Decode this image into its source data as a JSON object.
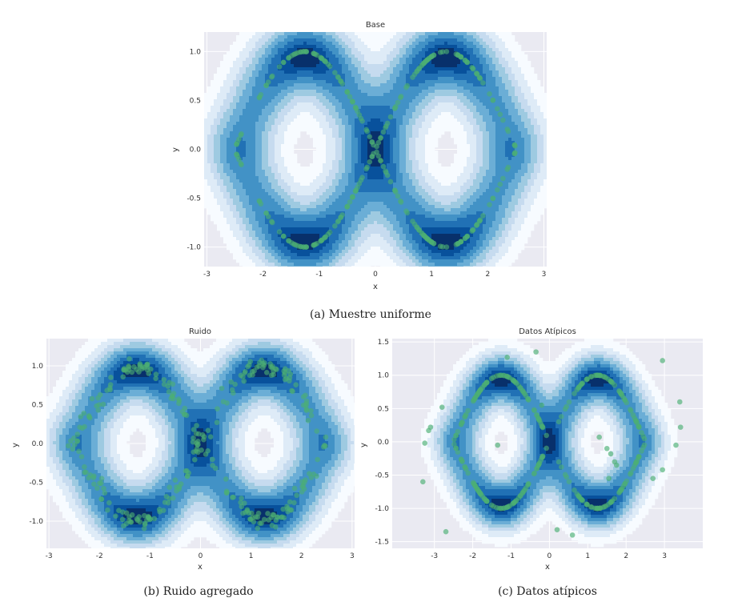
{
  "figure": {
    "captions": [
      "(a) Muestre uniforme",
      "(b) Ruido agregado",
      "(c) Datos atípicos"
    ]
  },
  "colors": {
    "panel_bg": "#eaeaf2",
    "grid": "#ffffff",
    "contour_levels": [
      "#f7fbff",
      "#deebf7",
      "#c6dbef",
      "#9ecae1",
      "#6baed6",
      "#4292c6",
      "#2171b5",
      "#08519c",
      "#08306b"
    ],
    "points": "#4caf73"
  },
  "chart_data": [
    {
      "type": "scatter",
      "overlay": "kde-contour",
      "title": "Base",
      "xlabel": "x",
      "ylabel": "y",
      "xlim": [
        -3.05,
        3.05
      ],
      "ylim": [
        -1.2,
        1.2
      ],
      "xticks": [
        "-3",
        "-2",
        "-1",
        "0",
        "1",
        "2",
        "3"
      ],
      "yticks": [
        "-1.0",
        "-0.5",
        "0.0",
        "0.5",
        "1.0"
      ],
      "series": [
        {
          "curve": "y = sin(1.25 x) (upper), y = -sin(1.25 x) (lower)",
          "x_range": [
            -2.5,
            2.5
          ],
          "n_points": 300,
          "noise_sd": 0.0
        }
      ],
      "outliers": []
    },
    {
      "type": "scatter",
      "overlay": "kde-contour",
      "title": "Ruido",
      "xlabel": "x",
      "ylabel": "y",
      "xlim": [
        -3.05,
        3.05
      ],
      "ylim": [
        -1.35,
        1.35
      ],
      "xticks": [
        "-3",
        "-2",
        "-1",
        "0",
        "1",
        "2",
        "3"
      ],
      "yticks": [
        "-1.0",
        "-0.5",
        "0.0",
        "0.5",
        "1.0"
      ],
      "series": [
        {
          "curve": "y = sin(1.25 x) (upper), y = -sin(1.25 x) (lower)",
          "x_range": [
            -2.5,
            2.5
          ],
          "n_points": 300,
          "noise_sd": 0.05
        }
      ],
      "outliers": []
    },
    {
      "type": "scatter",
      "overlay": "kde-contour",
      "title": "Datos Atípicos",
      "xlabel": "x",
      "ylabel": "y",
      "xlim": [
        -4.1,
        4.0
      ],
      "ylim": [
        -1.6,
        1.55
      ],
      "xticks": [
        "-3",
        "-2",
        "-1",
        "0",
        "1",
        "2",
        "3"
      ],
      "yticks": [
        "-1.5",
        "-1.0",
        "-0.5",
        "0.0",
        "0.5",
        "1.0",
        "1.5"
      ],
      "series": [
        {
          "curve": "y = sin(1.25 x) (upper), y = -sin(1.25 x) (lower)",
          "x_range": [
            -2.5,
            2.5
          ],
          "n_points": 300,
          "noise_sd": 0.0
        }
      ],
      "outliers": [
        [
          -3.3,
          -0.6
        ],
        [
          -3.25,
          -0.02
        ],
        [
          -3.15,
          0.17
        ],
        [
          -3.1,
          0.22
        ],
        [
          -2.8,
          0.52
        ],
        [
          -2.7,
          -1.35
        ],
        [
          -1.1,
          1.27
        ],
        [
          -0.35,
          1.35
        ],
        [
          -1.35,
          -0.05
        ],
        [
          -0.2,
          0.55
        ],
        [
          0.2,
          -1.32
        ],
        [
          0.6,
          -1.4
        ],
        [
          1.3,
          0.07
        ],
        [
          1.5,
          -0.1
        ],
        [
          1.6,
          -0.18
        ],
        [
          1.7,
          -0.3
        ],
        [
          1.75,
          -0.35
        ],
        [
          2.7,
          -0.55
        ],
        [
          2.95,
          1.22
        ],
        [
          2.95,
          -0.42
        ],
        [
          3.3,
          -0.05
        ],
        [
          3.4,
          0.6
        ],
        [
          3.42,
          0.22
        ],
        [
          1.55,
          -0.55
        ]
      ]
    }
  ]
}
